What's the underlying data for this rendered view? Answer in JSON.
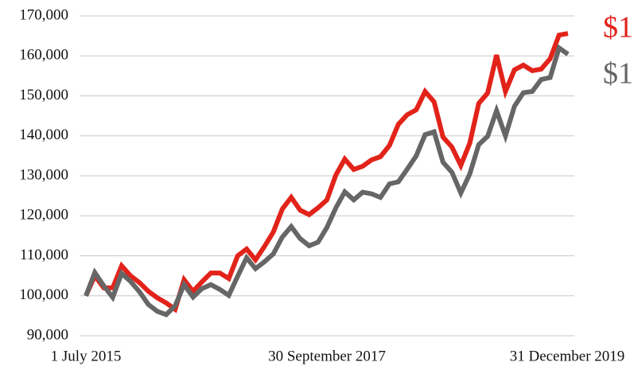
{
  "chart_data": {
    "type": "line",
    "categories": [
      "1 July 2015",
      null,
      null,
      null,
      null,
      null,
      null,
      null,
      null,
      null,
      null,
      null,
      null,
      null,
      null,
      null,
      null,
      null,
      null,
      null,
      null,
      null,
      null,
      null,
      null,
      null,
      null,
      "30 September 2017",
      null,
      null,
      null,
      null,
      null,
      null,
      null,
      null,
      null,
      null,
      null,
      null,
      null,
      null,
      null,
      null,
      null,
      null,
      null,
      null,
      null,
      null,
      null,
      null,
      null,
      null,
      "31 December 2019"
    ],
    "series": [
      {
        "color": "#e2231a",
        "end_label": "$1",
        "values": [
          100000,
          105000,
          102000,
          102000,
          107500,
          105000,
          103300,
          101100,
          99500,
          98200,
          96600,
          104000,
          101100,
          103500,
          105700,
          105700,
          104300,
          110000,
          111700,
          109000,
          112300,
          116000,
          121700,
          124600,
          121400,
          120300,
          122000,
          124000,
          130200,
          134200,
          131600,
          132400,
          134000,
          134800,
          137600,
          142900,
          145300,
          146500,
          151100,
          148500,
          139700,
          137200,
          132600,
          138200,
          148100,
          150700,
          160200,
          151100,
          156500,
          157700,
          156300,
          156700,
          159300,
          165200,
          165600
        ]
      },
      {
        "color": "#666666",
        "end_label": "$1",
        "values": [
          100000,
          105800,
          102500,
          99600,
          105600,
          103600,
          101000,
          97800,
          96100,
          95300,
          97500,
          102800,
          99700,
          101800,
          102800,
          101600,
          100100,
          104900,
          109500,
          106800,
          108500,
          110500,
          114700,
          117300,
          114300,
          112500,
          113400,
          117100,
          122000,
          126000,
          124000,
          125900,
          125500,
          124600,
          128000,
          128500,
          131700,
          135000,
          140300,
          141000,
          133400,
          130900,
          125700,
          130500,
          137800,
          139900,
          146300,
          140000,
          147400,
          150800,
          151100,
          154100,
          154600,
          162000,
          160400
        ]
      }
    ],
    "ylim": [
      90000,
      170000
    ],
    "yticks": [
      {
        "value": 90000,
        "label": "90,000"
      },
      {
        "value": 100000,
        "label": "100,000"
      },
      {
        "value": 110000,
        "label": "110,000"
      },
      {
        "value": 120000,
        "label": "120,000"
      },
      {
        "value": 130000,
        "label": "130,000"
      },
      {
        "value": 140000,
        "label": "140,000"
      },
      {
        "value": 150000,
        "label": "150,000"
      },
      {
        "value": 160000,
        "label": "160,000"
      },
      {
        "value": 170000,
        "label": "170,000"
      }
    ],
    "grid": true
  }
}
